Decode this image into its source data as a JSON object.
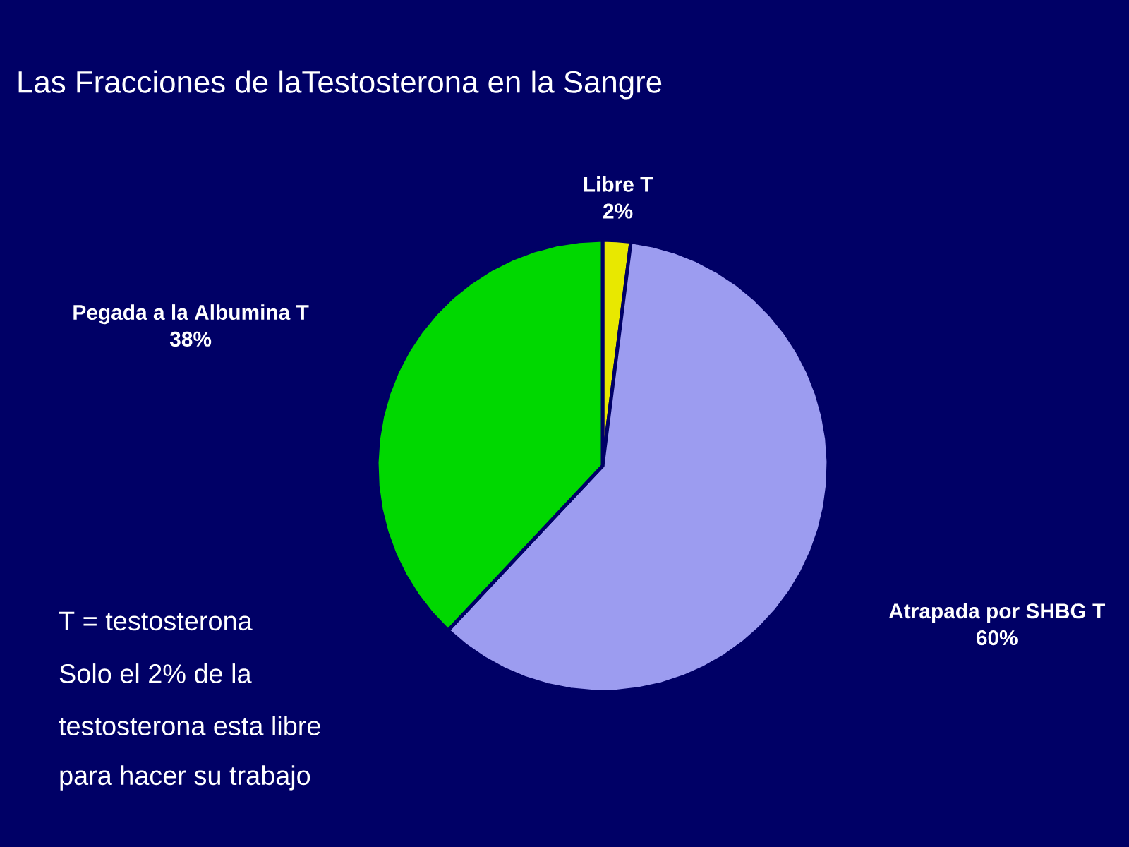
{
  "chart_data": {
    "type": "pie",
    "title": "Las Fracciones de laTestosterona en la Sangre",
    "categories": [
      "Libre T",
      "Atrapada por SHBG T",
      "Pegada a la Albumina T"
    ],
    "values": [
      2,
      60,
      38
    ],
    "value_labels": [
      "2%",
      "60%",
      "38%"
    ],
    "colors": [
      "#e8e800",
      "#9c9cf0",
      "#00d800"
    ],
    "annotations": [
      "T = testosterona",
      "Solo el 2% de la",
      "testosterona esta libre",
      "para hacer su trabajo"
    ]
  }
}
